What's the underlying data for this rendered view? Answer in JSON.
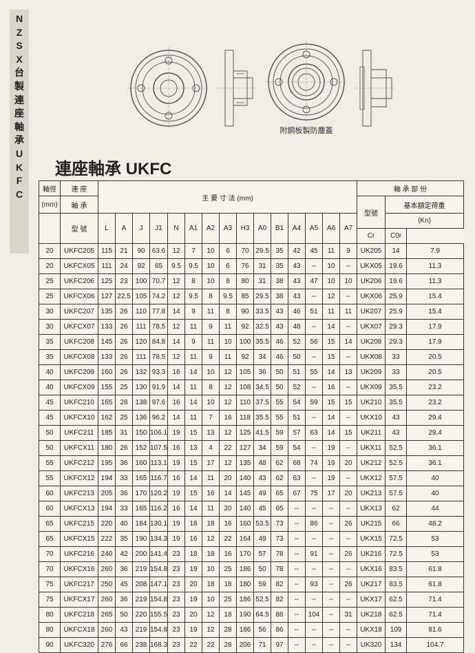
{
  "sidebar": {
    "chars": [
      "N",
      "Z",
      "S",
      "X",
      "台",
      "製",
      "連",
      "座",
      "軸",
      "承",
      "U",
      "K",
      "F",
      "C"
    ]
  },
  "caption": "附鋼板製防塵蓋",
  "title": "連座軸承 UKFC",
  "headers": {
    "shaft_dia": "軸徑",
    "shaft_unit": "(mm)",
    "bearing_unit": "連 座",
    "bearing_unit2": "軸 承",
    "bearing_unit3": "型 號",
    "dims_title": "主 要 寸 法 (mm)",
    "bearing_part": "軸 承 部 份",
    "type": "型號",
    "basic_load": "基本額定荷重",
    "kn": "(Kn)",
    "dim_labels": [
      "L",
      "A",
      "J",
      "J1",
      "N",
      "A1",
      "A2",
      "A3",
      "H3",
      "A0",
      "B1",
      "A4",
      "A5",
      "A6",
      "A7"
    ],
    "load_labels": [
      "Cr",
      "C0r"
    ]
  },
  "rows": [
    {
      "d": "20",
      "m": "UKFC205",
      "v": [
        "115",
        "21",
        "90",
        "63.6",
        "12",
        "7",
        "10",
        "6",
        "70",
        "29.5",
        "35",
        "42",
        "45",
        "11",
        "9"
      ],
      "t": "UK205",
      "cr": "14",
      "c0r": "7.9"
    },
    {
      "d": "20",
      "m": "UKFCX05",
      "v": [
        "111",
        "24",
        "92",
        "65",
        "9.5",
        "9.5",
        "10",
        "6",
        "76",
        "31",
        "35",
        "43",
        "--",
        "10",
        "--"
      ],
      "t": "UKX05",
      "cr": "19.6",
      "c0r": "11.3"
    },
    {
      "d": "25",
      "m": "UKFC206",
      "v": [
        "125",
        "23",
        "100",
        "70.7",
        "12",
        "8",
        "10",
        "8",
        "80",
        "31",
        "38",
        "43",
        "47",
        "10",
        "10"
      ],
      "t": "UK206",
      "cr": "19.6",
      "c0r": "11.3"
    },
    {
      "d": "25",
      "m": "UKFCX06",
      "v": [
        "127",
        "22.5",
        "105",
        "74.2",
        "12",
        "9.5",
        "8",
        "9.5",
        "85",
        "29.5",
        "38",
        "43",
        "--",
        "12",
        "--"
      ],
      "t": "UKX06",
      "cr": "25.9",
      "c0r": "15.4"
    },
    {
      "d": "30",
      "m": "UKFC207",
      "v": [
        "135",
        "26",
        "110",
        "77.8",
        "14",
        "9",
        "11",
        "8",
        "90",
        "33.5",
        "43",
        "46",
        "51",
        "11",
        "11"
      ],
      "t": "UK207",
      "cr": "25.9",
      "c0r": "15.4"
    },
    {
      "d": "30",
      "m": "UKFCX07",
      "v": [
        "133",
        "26",
        "111",
        "78.5",
        "12",
        "11",
        "9",
        "11",
        "92",
        "32.5",
        "43",
        "48",
        "--",
        "14",
        "--"
      ],
      "t": "UKX07",
      "cr": "29.3",
      "c0r": "17.9"
    },
    {
      "d": "35",
      "m": "UKFC208",
      "v": [
        "145",
        "26",
        "120",
        "84.8",
        "14",
        "9",
        "11",
        "10",
        "100",
        "35.5",
        "46",
        "52",
        "56",
        "15",
        "14"
      ],
      "t": "UK208",
      "cr": "29.3",
      "c0r": "17.9"
    },
    {
      "d": "35",
      "m": "UKFCX08",
      "v": [
        "133",
        "26",
        "111",
        "78.5",
        "12",
        "11",
        "9",
        "11",
        "92",
        "34",
        "46",
        "50",
        "--",
        "15",
        "--"
      ],
      "t": "UKX08",
      "cr": "33",
      "c0r": "20.5"
    },
    {
      "d": "40",
      "m": "UKFC209",
      "v": [
        "160",
        "26",
        "132",
        "93.3",
        "16",
        "14",
        "10",
        "12",
        "105",
        "36",
        "50",
        "51",
        "55",
        "14",
        "13"
      ],
      "t": "UK209",
      "cr": "33",
      "c0r": "20.5"
    },
    {
      "d": "40",
      "m": "UKFCX09",
      "v": [
        "155",
        "25",
        "130",
        "91.9",
        "14",
        "11",
        "8",
        "12",
        "108",
        "34.5",
        "50",
        "52",
        "--",
        "16",
        "--"
      ],
      "t": "UKX09",
      "cr": "35.5",
      "c0r": "23.2"
    },
    {
      "d": "45",
      "m": "UKFC210",
      "v": [
        "165",
        "28",
        "138",
        "97.6",
        "16",
        "14",
        "10",
        "12",
        "110",
        "37.5",
        "55",
        "54",
        "59",
        "15",
        "15"
      ],
      "t": "UK210",
      "cr": "35.5",
      "c0r": "23.2"
    },
    {
      "d": "45",
      "m": "UKFCX10",
      "v": [
        "162",
        "25",
        "136",
        "96.2",
        "14",
        "11",
        "7",
        "16",
        "118",
        "35.5",
        "55",
        "51",
        "--",
        "14",
        "--"
      ],
      "t": "UKX10",
      "cr": "43",
      "c0r": "29.4"
    },
    {
      "d": "50",
      "m": "UKFC211",
      "v": [
        "185",
        "31",
        "150",
        "106.1",
        "19",
        "15",
        "13",
        "12",
        "125",
        "41.5",
        "59",
        "57",
        "63",
        "14",
        "15"
      ],
      "t": "UK211",
      "cr": "43",
      "c0r": "29.4"
    },
    {
      "d": "50",
      "m": "UKFCX11",
      "v": [
        "180",
        "26",
        "152",
        "107.5",
        "16",
        "13",
        "4",
        "22",
        "127",
        "34",
        "59",
        "54",
        "--",
        "19",
        "--"
      ],
      "t": "UKX11",
      "cr": "52.5",
      "c0r": "36.1"
    },
    {
      "d": "55",
      "m": "UKFC212",
      "v": [
        "195",
        "36",
        "160",
        "113.1",
        "19",
        "15",
        "17",
        "12",
        "135",
        "48",
        "62",
        "68",
        "74",
        "19",
        "20"
      ],
      "t": "UK212",
      "cr": "52.5",
      "c0r": "36.1"
    },
    {
      "d": "55",
      "m": "UKFCX12",
      "v": [
        "194",
        "33",
        "165",
        "116.7",
        "16",
        "14",
        "11",
        "20",
        "140",
        "43",
        "62",
        "63",
        "--",
        "19",
        "--"
      ],
      "t": "UKX12",
      "cr": "57.5",
      "c0r": "40"
    },
    {
      "d": "60",
      "m": "UKFC213",
      "v": [
        "205",
        "36",
        "170",
        "120.2",
        "19",
        "15",
        "16",
        "14",
        "145",
        "49",
        "65",
        "67",
        "75",
        "17",
        "20"
      ],
      "t": "UK213",
      "cr": "57.5",
      "c0r": "40"
    },
    {
      "d": "60",
      "m": "UKFCX13",
      "v": [
        "194",
        "33",
        "165",
        "116.2",
        "16",
        "14",
        "11",
        "20",
        "140",
        "45",
        "65",
        "--",
        "--",
        "--",
        "--"
      ],
      "t": "UKX13",
      "cr": "62",
      "c0r": "44"
    },
    {
      "d": "65",
      "m": "UKFC215",
      "v": [
        "220",
        "40",
        "184",
        "130.1",
        "19",
        "18",
        "18",
        "16",
        "160",
        "53.5",
        "73",
        "--",
        "86",
        "--",
        "26"
      ],
      "t": "UK215",
      "cr": "66",
      "c0r": "48.2"
    },
    {
      "d": "65",
      "m": "UKFCX15",
      "v": [
        "222",
        "35",
        "190",
        "134.3",
        "19",
        "16",
        "12",
        "22",
        "164",
        "49",
        "73",
        "--",
        "--",
        "--",
        "--"
      ],
      "t": "UKX15",
      "cr": "72.5",
      "c0r": "53"
    },
    {
      "d": "70",
      "m": "UKFC216",
      "v": [
        "240",
        "42",
        "200",
        "141.4",
        "23",
        "18",
        "18",
        "16",
        "170",
        "57",
        "78",
        "--",
        "91",
        "--",
        "26"
      ],
      "t": "UK216",
      "cr": "72.5",
      "c0r": "53"
    },
    {
      "d": "70",
      "m": "UKFCX16",
      "v": [
        "260",
        "36",
        "219",
        "154.8",
        "23",
        "19",
        "10",
        "25",
        "186",
        "50",
        "78",
        "--",
        "--",
        "--",
        "--"
      ],
      "t": "UKX16",
      "cr": "83.5",
      "c0r": "61.8"
    },
    {
      "d": "75",
      "m": "UKFC217",
      "v": [
        "250",
        "45",
        "208",
        "147.1",
        "23",
        "20",
        "18",
        "18",
        "180",
        "59",
        "82",
        "--",
        "93",
        "--",
        "26"
      ],
      "t": "UK217",
      "cr": "83.5",
      "c0r": "61.8"
    },
    {
      "d": "75",
      "m": "UKFCX17",
      "v": [
        "260",
        "36",
        "219",
        "154.8",
        "23",
        "19",
        "10",
        "25",
        "186",
        "52.5",
        "82",
        "--",
        "--",
        "--",
        "--"
      ],
      "t": "UKX17",
      "cr": "62.5",
      "c0r": "71.4"
    },
    {
      "d": "80",
      "m": "UKFC218",
      "v": [
        "265",
        "50",
        "220",
        "155.5",
        "23",
        "20",
        "12",
        "18",
        "190",
        "64.5",
        "86",
        "--",
        "104",
        "--",
        "31"
      ],
      "t": "UK218",
      "cr": "62.5",
      "c0r": "71.4"
    },
    {
      "d": "80",
      "m": "UKFCX18",
      "v": [
        "260",
        "43",
        "219",
        "154.8",
        "23",
        "19",
        "12",
        "28",
        "186",
        "56",
        "86",
        "--",
        "--",
        "--",
        "--"
      ],
      "t": "UKX18",
      "cr": "109",
      "c0r": "81.6"
    },
    {
      "d": "90",
      "m": "UKFC320",
      "v": [
        "276",
        "66",
        "238",
        "168.3",
        "23",
        "22",
        "22",
        "28",
        "206",
        "71",
        "97",
        "--",
        "--",
        "--",
        "--"
      ],
      "t": "UK320",
      "cr": "134",
      "c0r": "104.7"
    }
  ]
}
